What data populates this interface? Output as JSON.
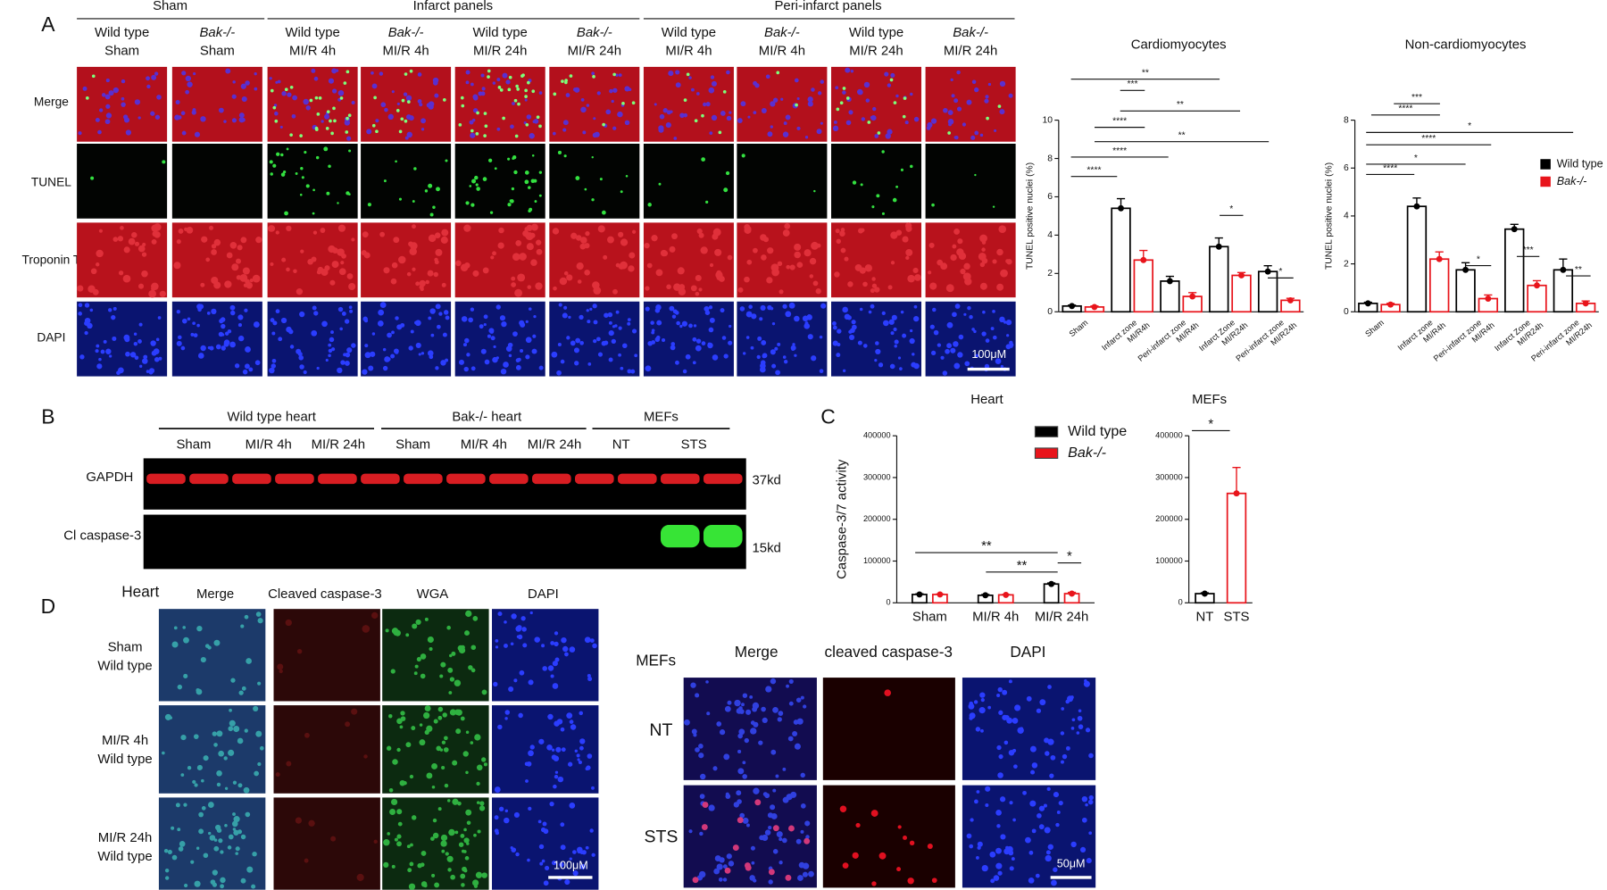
{
  "panel_labels": [
    "A",
    "B",
    "C",
    "D"
  ],
  "panel_a": {
    "groups": [
      "Sham",
      "Infarct panels",
      "Peri-infarct panels"
    ],
    "columns": [
      [
        "Wild type",
        "Sham"
      ],
      [
        "Bak-/-",
        "Sham"
      ],
      [
        "Wild type",
        "MI/R 4h"
      ],
      [
        "Bak-/-",
        "MI/R 4h"
      ],
      [
        "Wild type",
        "MI/R 24h"
      ],
      [
        "Bak-/-",
        "MI/R 24h"
      ],
      [
        "Wild type",
        "MI/R 4h"
      ],
      [
        "Bak-/-",
        "MI/R 4h"
      ],
      [
        "Wild type",
        "MI/R 24h"
      ],
      [
        "Bak-/-",
        "MI/R 24h"
      ]
    ],
    "rows": [
      "Merge",
      "TUNEL",
      "Troponin T",
      "DAPI"
    ],
    "scale_bar": "100μM"
  },
  "panel_b": {
    "groups": [
      "Wild type heart",
      "Bak-/- heart",
      "MEFs"
    ],
    "lanes": [
      "Sham",
      "MI/R 4h",
      "MI/R 24h",
      "Sham",
      "MI/R 4h",
      "MI/R 24h",
      "NT",
      "STS"
    ],
    "rows": [
      "GAPDH",
      "Cl caspase-3"
    ],
    "sizes": [
      "37kd",
      "15kd"
    ]
  },
  "panel_d": {
    "heart": {
      "title": "Heart",
      "columns": [
        "Merge",
        "Cleaved caspase-3",
        "WGA",
        "DAPI"
      ],
      "rows": [
        [
          "Sham",
          "Wild type"
        ],
        [
          "MI/R 4h",
          "Wild type"
        ],
        [
          "MI/R 24h",
          "Wild type"
        ]
      ],
      "scale_bar": "100μM"
    },
    "mefs": {
      "title": "MEFs",
      "columns": [
        "Merge",
        "cleaved caspase-3",
        "DAPI"
      ],
      "rows": [
        "NT",
        "STS"
      ],
      "scale_bar": "50μM"
    }
  },
  "chart_data": [
    {
      "type": "bar",
      "title": "Cardiomyocytes",
      "y_label": "TUNEL positive nuclei (%)",
      "categories": [
        [
          "Sham"
        ],
        [
          "Infarct zone",
          "MI/R4h"
        ],
        [
          "Peri-infarct zone",
          "MI/R4h"
        ],
        [
          "Infarct Zone",
          "MI/R24h"
        ],
        [
          "Peri-infarct zone",
          "MI/R24h"
        ]
      ],
      "series": [
        {
          "name": "Wild type",
          "color": "#000000",
          "values": [
            0.3,
            5.4,
            1.6,
            3.4,
            2.1
          ],
          "errors": [
            0.05,
            0.5,
            0.25,
            0.45,
            0.3
          ]
        },
        {
          "name": "Bak-/-",
          "color": "#e8141b",
          "values": [
            0.25,
            2.7,
            0.8,
            1.9,
            0.6
          ],
          "errors": [
            0.05,
            0.5,
            0.2,
            0.15,
            0.1
          ]
        }
      ],
      "ylim": [
        0,
        10
      ],
      "yticks": [
        0,
        2,
        4,
        6,
        8,
        10
      ],
      "annotations": [
        "**",
        "***",
        "**",
        "****",
        "**",
        "****",
        "****",
        "*",
        "*"
      ],
      "legend": false
    },
    {
      "type": "bar",
      "title": "Non-cardiomyocytes",
      "y_label": "TUNEL positive nuclei (%)",
      "categories": [
        [
          "Sham"
        ],
        [
          "Infarct zone",
          "MI/R4h"
        ],
        [
          "Peri-infarct zone",
          "MI/R4h"
        ],
        [
          "Infarct Zone",
          "MI/R24h"
        ],
        [
          "Peri-infarct zone",
          "MI/R24h"
        ]
      ],
      "series": [
        {
          "name": "Wild type",
          "color": "#000000",
          "values": [
            0.35,
            4.4,
            1.75,
            3.45,
            1.75
          ],
          "errors": [
            0.05,
            0.35,
            0.3,
            0.2,
            0.45
          ]
        },
        {
          "name": "Bak-/-",
          "color": "#e8141b",
          "values": [
            0.3,
            2.2,
            0.55,
            1.1,
            0.35
          ],
          "errors": [
            0.05,
            0.3,
            0.15,
            0.2,
            0.1
          ]
        }
      ],
      "ylim": [
        0,
        8
      ],
      "yticks": [
        0,
        2,
        4,
        6,
        8
      ],
      "annotations": [
        "***",
        "****",
        "*",
        "****",
        "*",
        "****",
        "*",
        "***",
        "**"
      ],
      "legend": "upper right"
    },
    {
      "type": "bar",
      "title": "Heart",
      "y_label": "Caspase-3/7 activity",
      "categories": [
        "Sham",
        "MI/R 4h",
        "MI/R 24h"
      ],
      "series": [
        {
          "name": "Wild type",
          "color": "#000000",
          "values": [
            20000,
            18000,
            45000
          ],
          "errors": [
            1500,
            2000,
            2500
          ]
        },
        {
          "name": "Bak-/-",
          "color": "#e8141b",
          "values": [
            20000,
            19000,
            22000
          ],
          "errors": [
            1000,
            1000,
            3000
          ]
        }
      ],
      "ylim": [
        0,
        400000
      ],
      "yticks": [
        0,
        100000,
        200000,
        300000,
        400000
      ],
      "annotations": [
        "**",
        "**",
        "*"
      ],
      "legend": "upper right"
    },
    {
      "type": "bar",
      "title": "MEFs",
      "categories": [
        "NT",
        "STS"
      ],
      "values": [
        22000,
        262000
      ],
      "errors": [
        2000,
        62000
      ],
      "colors": [
        "#000000",
        "#e8141b"
      ],
      "ylim": [
        0,
        400000
      ],
      "yticks": [
        0,
        100000,
        200000,
        300000,
        400000
      ],
      "annotations": [
        "*"
      ]
    }
  ]
}
